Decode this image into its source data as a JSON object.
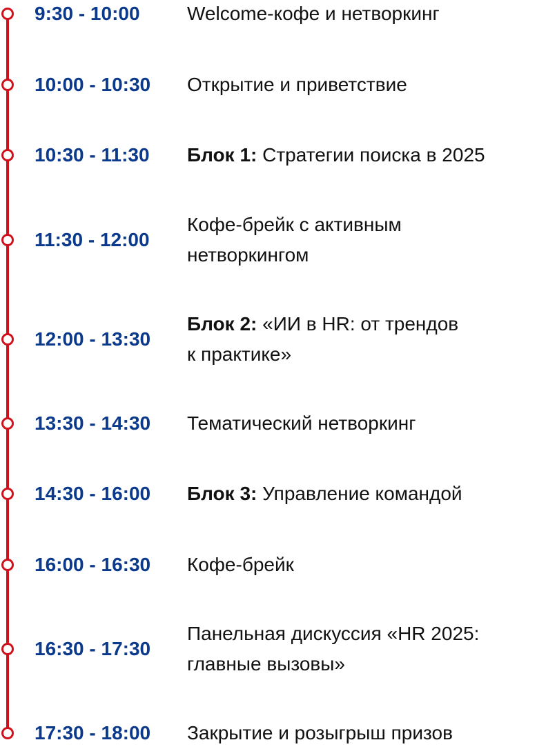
{
  "schedule": [
    {
      "time": "9:30 - 10:00",
      "lines": [
        "Welcome-кофе и нетворкинг"
      ]
    },
    {
      "time": "10:00 - 10:30",
      "lines": [
        "Открытие и приветствие"
      ]
    },
    {
      "time": "10:30 - 11:30",
      "label": "Блок 1:",
      "lines": [
        "Стратегии поиска в 2025"
      ]
    },
    {
      "time": "11:30 - 12:00",
      "lines": [
        "Кофе-брейк с активным",
        "нетворкингом"
      ]
    },
    {
      "time": "12:00 - 13:30",
      "label": "Блок 2:",
      "lines": [
        "«ИИ в HR: от трендов",
        "к практике»"
      ]
    },
    {
      "time": "13:30 - 14:30",
      "lines": [
        "Тематический нетворкинг"
      ]
    },
    {
      "time": "14:30 - 16:00",
      "label": "Блок 3:",
      "lines": [
        "Управление командой"
      ]
    },
    {
      "time": "16:00 - 16:30",
      "lines": [
        "Кофе-брейк"
      ]
    },
    {
      "time": "16:30 - 17:30",
      "lines": [
        "Панельная дискуссия «HR 2025:",
        "главные вызовы»"
      ]
    },
    {
      "time": "17:30 - 18:00",
      "lines": [
        "Закрытие и розыгрыш призов"
      ]
    }
  ]
}
